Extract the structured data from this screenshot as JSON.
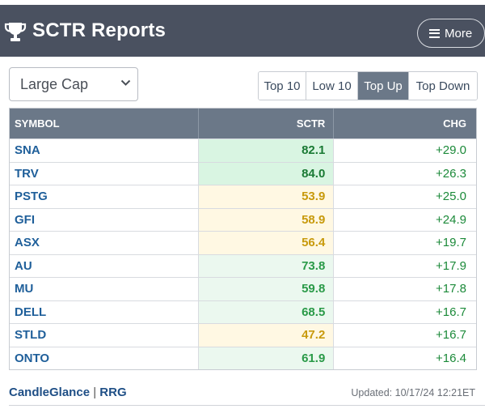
{
  "header": {
    "title": "SCTR Reports",
    "more_label": "More"
  },
  "filter": {
    "selected": "Large Cap"
  },
  "tabs": [
    {
      "label": "Top 10",
      "active": false
    },
    {
      "label": "Low 10",
      "active": false
    },
    {
      "label": "Top Up",
      "active": true
    },
    {
      "label": "Top Down",
      "active": false
    }
  ],
  "table": {
    "headers": {
      "symbol": "SYMBOL",
      "sctr": "SCTR",
      "chg": "CHG"
    },
    "rows": [
      {
        "symbol": "SNA",
        "sctr": "82.1",
        "chg": "+29.0",
        "level": "high"
      },
      {
        "symbol": "TRV",
        "sctr": "84.0",
        "chg": "+26.3",
        "level": "high"
      },
      {
        "symbol": "PSTG",
        "sctr": "53.9",
        "chg": "+25.0",
        "level": "mid"
      },
      {
        "symbol": "GFI",
        "sctr": "58.9",
        "chg": "+24.9",
        "level": "mid"
      },
      {
        "symbol": "ASX",
        "sctr": "56.4",
        "chg": "+19.7",
        "level": "mid"
      },
      {
        "symbol": "AU",
        "sctr": "73.8",
        "chg": "+17.9",
        "level": "good"
      },
      {
        "symbol": "MU",
        "sctr": "59.8",
        "chg": "+17.8",
        "level": "good"
      },
      {
        "symbol": "DELL",
        "sctr": "68.5",
        "chg": "+16.7",
        "level": "good"
      },
      {
        "symbol": "STLD",
        "sctr": "47.2",
        "chg": "+16.7",
        "level": "mid"
      },
      {
        "symbol": "ONTO",
        "sctr": "61.9",
        "chg": "+16.4",
        "level": "good"
      }
    ]
  },
  "colors": {
    "high_bg": "#d9f5e2",
    "high_fg": "#1a7a34",
    "good_bg": "#ebf8ef",
    "good_fg": "#2a9a48",
    "mid_bg": "#fff8e3",
    "mid_fg": "#c89a0c"
  },
  "footer": {
    "link1": "CandleGlance",
    "separator": "|",
    "link2": "RRG",
    "updated": "Updated: 10/17/24 12:21ET"
  }
}
